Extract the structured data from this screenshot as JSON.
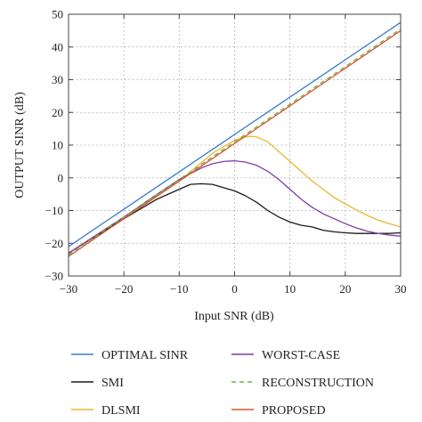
{
  "chart_data": {
    "type": "line",
    "xlabel": "Input SNR (dB)",
    "ylabel": "OUTPUT SINR (dB)",
    "xlim": [
      -30,
      30
    ],
    "ylim": [
      -30,
      50
    ],
    "xticks": [
      -30,
      -20,
      -10,
      0,
      10,
      20,
      30
    ],
    "yticks": [
      -30,
      -20,
      -10,
      0,
      10,
      20,
      30,
      40,
      50
    ],
    "xtick_labels": [
      "−30",
      "−20",
      "−10",
      "0",
      "10",
      "20",
      "30"
    ],
    "ytick_labels": [
      "−30",
      "−20",
      "−10",
      "0",
      "10",
      "20",
      "30",
      "40",
      "50"
    ],
    "grid": "dotted",
    "legend_placement": "bottom",
    "series": [
      {
        "name": "OPTIMAL SINR",
        "color": "#3a7dc9",
        "dash": "solid",
        "points": [
          [
            -30,
            -21
          ],
          [
            30,
            47.5
          ]
        ]
      },
      {
        "name": "SMI",
        "color": "#1a1a1a",
        "dash": "solid",
        "points": [
          [
            -30,
            -23
          ],
          [
            -20,
            -12.5
          ],
          [
            -14,
            -6.5
          ],
          [
            -10,
            -3.5
          ],
          [
            -8,
            -2
          ],
          [
            -6,
            -1.8
          ],
          [
            -4,
            -2
          ],
          [
            -2,
            -3
          ],
          [
            0,
            -4
          ],
          [
            2,
            -5.5
          ],
          [
            4,
            -7.5
          ],
          [
            6,
            -10
          ],
          [
            8,
            -12
          ],
          [
            10,
            -13.5
          ],
          [
            12,
            -14.5
          ],
          [
            14,
            -15
          ],
          [
            16,
            -16
          ],
          [
            18,
            -16.5
          ],
          [
            20,
            -16.8
          ],
          [
            22,
            -17
          ],
          [
            25,
            -17
          ],
          [
            28,
            -17
          ],
          [
            30,
            -16.8
          ]
        ]
      },
      {
        "name": "DLSMI",
        "color": "#e8b830",
        "dash": "solid",
        "points": [
          [
            -30,
            -23
          ],
          [
            -20,
            -12
          ],
          [
            -10,
            -1
          ],
          [
            -4,
            7.5
          ],
          [
            0,
            11.5
          ],
          [
            2,
            12.5
          ],
          [
            3,
            12.7
          ],
          [
            4,
            12.5
          ],
          [
            6,
            11
          ],
          [
            8,
            8
          ],
          [
            10,
            5
          ],
          [
            12,
            2
          ],
          [
            14,
            -1
          ],
          [
            16,
            -3.5
          ],
          [
            18,
            -6
          ],
          [
            20,
            -8
          ],
          [
            22,
            -9.8
          ],
          [
            24,
            -11.5
          ],
          [
            26,
            -13
          ],
          [
            28,
            -14
          ],
          [
            30,
            -15
          ]
        ]
      },
      {
        "name": "WORST-CASE",
        "color": "#7a3ea8",
        "dash": "solid",
        "points": [
          [
            -30,
            -23
          ],
          [
            -20,
            -12
          ],
          [
            -14,
            -5
          ],
          [
            -10,
            -0.5
          ],
          [
            -6,
            3
          ],
          [
            -4,
            4.3
          ],
          [
            -2,
            5
          ],
          [
            0,
            5.2
          ],
          [
            2,
            4.8
          ],
          [
            4,
            3.8
          ],
          [
            6,
            2
          ],
          [
            8,
            -0.5
          ],
          [
            10,
            -3.5
          ],
          [
            12,
            -6.5
          ],
          [
            14,
            -9
          ],
          [
            16,
            -11
          ],
          [
            18,
            -12.5
          ],
          [
            20,
            -14
          ],
          [
            22,
            -15.3
          ],
          [
            24,
            -16.3
          ],
          [
            26,
            -17
          ],
          [
            28,
            -17.5
          ],
          [
            30,
            -17.8
          ]
        ]
      },
      {
        "name": "RECONSTRUCTION",
        "color": "#6ab04c",
        "dash": "dashed",
        "points": [
          [
            -30,
            -23.5
          ],
          [
            30,
            45.5
          ]
        ]
      },
      {
        "name": "PROPOSED",
        "color": "#d6562b",
        "dash": "solid",
        "points": [
          [
            -30,
            -24
          ],
          [
            30,
            45
          ]
        ]
      }
    ]
  }
}
